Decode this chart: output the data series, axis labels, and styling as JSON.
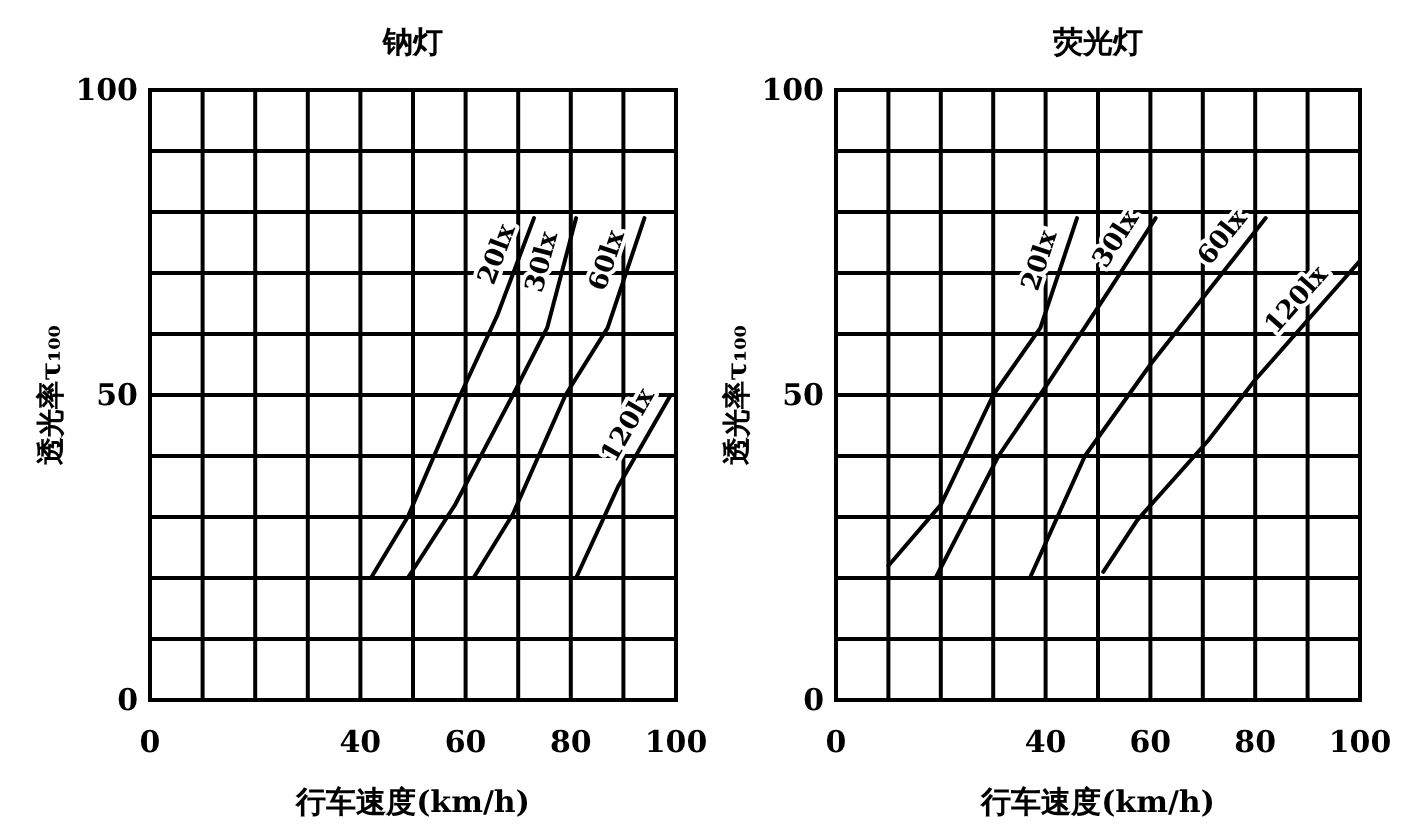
{
  "chart_data": [
    {
      "type": "line",
      "title": "钠灯",
      "xlabel": "行车速度(km/h)",
      "ylabel": "透光率τ₁₀₀",
      "xlim": [
        0,
        100
      ],
      "ylim": [
        0,
        100
      ],
      "xticks": [
        0,
        {
          "value": 10,
          "label": null
        },
        {
          "value": 20,
          "label": null
        },
        {
          "value": 30,
          "label": null
        },
        40,
        {
          "value": 50,
          "label": null
        },
        60,
        {
          "value": 70,
          "label": null
        },
        80,
        {
          "value": 90,
          "label": null
        },
        100
      ],
      "yticks": [
        0,
        {
          "value": 10,
          "label": null
        },
        {
          "value": 20,
          "label": null
        },
        {
          "value": 30,
          "label": null
        },
        {
          "value": 40,
          "label": null
        },
        50,
        {
          "value": 60,
          "label": null
        },
        {
          "value": 70,
          "label": null
        },
        {
          "value": 80,
          "label": null
        },
        {
          "value": 90,
          "label": null
        },
        100
      ],
      "grid": true,
      "line_style": "solid",
      "series": [
        {
          "name": "20lx",
          "color": "#000000",
          "x": [
            42,
            49,
            59,
            66,
            73
          ],
          "values": [
            20,
            30,
            50,
            63,
            79
          ]
        },
        {
          "name": "30lx",
          "color": "#000000",
          "x": [
            49,
            58,
            69,
            75.5,
            81
          ],
          "values": [
            20,
            32,
            50,
            61,
            79
          ]
        },
        {
          "name": "60lx",
          "color": "#000000",
          "x": [
            61.5,
            69,
            79,
            87,
            94
          ],
          "values": [
            20,
            30.5,
            50,
            61,
            79
          ]
        },
        {
          "name": "120lx",
          "color": "#000000",
          "x": [
            81,
            89,
            99
          ],
          "values": [
            20,
            35,
            50
          ]
        }
      ]
    },
    {
      "type": "line",
      "title": "荧光灯",
      "xlabel": "行车速度(km/h)",
      "ylabel": "透光率τ₁₀₀",
      "xlim": [
        0,
        100
      ],
      "ylim": [
        0,
        100
      ],
      "xticks": [
        0,
        {
          "value": 10,
          "label": null
        },
        {
          "value": 20,
          "label": null
        },
        {
          "value": 30,
          "label": null
        },
        40,
        {
          "value": 50,
          "label": null
        },
        60,
        {
          "value": 70,
          "label": null
        },
        80,
        {
          "value": 90,
          "label": null
        },
        100
      ],
      "yticks": [
        0,
        {
          "value": 10,
          "label": null
        },
        {
          "value": 20,
          "label": null
        },
        {
          "value": 30,
          "label": null
        },
        {
          "value": 40,
          "label": null
        },
        50,
        {
          "value": 60,
          "label": null
        },
        {
          "value": 70,
          "label": null
        },
        {
          "value": 80,
          "label": null
        },
        {
          "value": 90,
          "label": null
        },
        100
      ],
      "grid": true,
      "line_style": "solid",
      "series": [
        {
          "name": "20lx",
          "color": "#000000",
          "x": [
            10,
            20,
            30,
            39,
            46
          ],
          "values": [
            22,
            32,
            50,
            61,
            79
          ]
        },
        {
          "name": "30lx",
          "color": "#000000",
          "x": [
            19,
            31,
            40.5,
            52,
            61
          ],
          "values": [
            20,
            40,
            52,
            67,
            79
          ]
        },
        {
          "name": "60lx",
          "color": "#000000",
          "x": [
            37,
            47.5,
            60,
            71,
            82
          ],
          "values": [
            20,
            40,
            55,
            67,
            79
          ]
        },
        {
          "name": "120lx",
          "color": "#000000",
          "x": [
            51,
            57.5,
            71,
            80,
            100
          ],
          "values": [
            21,
            29.5,
            42.5,
            52.5,
            72
          ]
        }
      ]
    }
  ]
}
